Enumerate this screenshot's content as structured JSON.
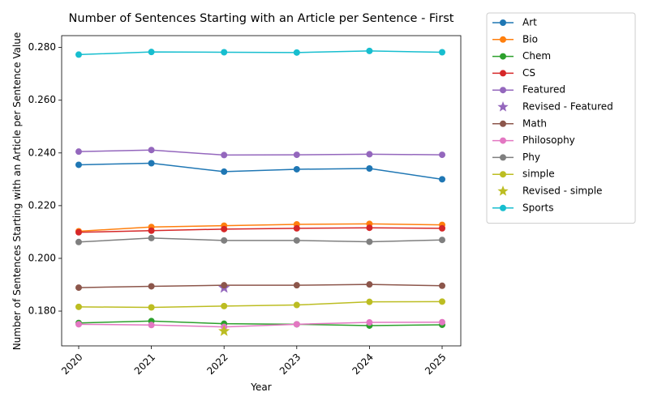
{
  "chart_data": {
    "type": "line",
    "title": "Number of Sentences Starting with an Article per Sentence - First",
    "xlabel": "Year",
    "ylabel": "Number of Sentences Starting with an Article per Sentence Value",
    "x": [
      "2020",
      "2021",
      "2022",
      "2023",
      "2024",
      "2025"
    ],
    "ylim": [
      0.1668,
      0.2845
    ],
    "yticks": [
      "0.180",
      "0.200",
      "0.220",
      "0.240",
      "0.260",
      "0.280"
    ],
    "grid": false,
    "legend_position": "outside-right",
    "series": [
      {
        "name": "Art",
        "color": "#1f77b4",
        "values": [
          0.2355,
          0.2361,
          0.2329,
          0.2338,
          0.2341,
          0.23
        ]
      },
      {
        "name": "Bio",
        "color": "#ff7f0e",
        "values": [
          0.2103,
          0.2119,
          0.2124,
          0.2129,
          0.2131,
          0.2127
        ]
      },
      {
        "name": "Chem",
        "color": "#2ca02c",
        "values": [
          0.1755,
          0.1762,
          0.1752,
          0.175,
          0.1745,
          0.1748
        ]
      },
      {
        "name": "CS",
        "color": "#d62728",
        "values": [
          0.2099,
          0.2105,
          0.2111,
          0.2114,
          0.2116,
          0.2114
        ]
      },
      {
        "name": "Featured",
        "color": "#9467bd",
        "values": [
          0.2405,
          0.2411,
          0.2392,
          0.2393,
          0.2395,
          0.2393
        ]
      },
      {
        "name": "Revised - Featured",
        "color": "#9467bd",
        "marker": "star",
        "points": [
          {
            "x": "2022",
            "y": 0.1888
          }
        ]
      },
      {
        "name": "Math",
        "color": "#8c564b",
        "values": [
          0.1889,
          0.1894,
          0.1898,
          0.1898,
          0.1901,
          0.1896
        ]
      },
      {
        "name": "Philosophy",
        "color": "#e377c2",
        "values": [
          0.175,
          0.1747,
          0.174,
          0.175,
          0.1757,
          0.1758
        ]
      },
      {
        "name": "Phy",
        "color": "#7f7f7f",
        "values": [
          0.2062,
          0.2077,
          0.2068,
          0.2068,
          0.2063,
          0.207
        ]
      },
      {
        "name": "simple",
        "color": "#bcbd22",
        "values": [
          0.1816,
          0.1814,
          0.1819,
          0.1823,
          0.1835,
          0.1836
        ]
      },
      {
        "name": "Revised - simple",
        "color": "#bcbd22",
        "marker": "star",
        "points": [
          {
            "x": "2022",
            "y": 0.1724
          }
        ]
      },
      {
        "name": "Sports",
        "color": "#17becf",
        "values": [
          0.2773,
          0.2783,
          0.2782,
          0.2781,
          0.2787,
          0.2782
        ]
      }
    ]
  }
}
